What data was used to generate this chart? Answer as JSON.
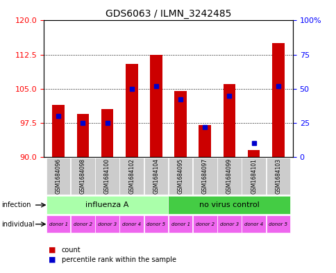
{
  "title": "GDS6063 / ILMN_3242485",
  "samples": [
    "GSM1684096",
    "GSM1684098",
    "GSM1684100",
    "GSM1684102",
    "GSM1684104",
    "GSM1684095",
    "GSM1684097",
    "GSM1684099",
    "GSM1684101",
    "GSM1684103"
  ],
  "bar_values": [
    101.5,
    99.5,
    100.5,
    110.5,
    112.5,
    104.5,
    97.0,
    106.0,
    91.5,
    115.0
  ],
  "percentile_values": [
    30,
    25,
    25,
    50,
    52,
    42,
    22,
    45,
    10,
    52
  ],
  "ylim_left": [
    90,
    120
  ],
  "ylim_right": [
    0,
    100
  ],
  "yticks_left": [
    90,
    97.5,
    105,
    112.5,
    120
  ],
  "yticks_right": [
    0,
    25,
    50,
    75,
    100
  ],
  "bar_color": "#cc0000",
  "percentile_color": "#0000cc",
  "infection_groups": [
    {
      "label": "influenza A",
      "span": [
        0,
        5
      ],
      "color": "#aaffaa"
    },
    {
      "label": "no virus control",
      "span": [
        5,
        10
      ],
      "color": "#44cc44"
    }
  ],
  "individual_labels": [
    "donor 1",
    "donor 2",
    "donor 3",
    "donor 4",
    "donor 5",
    "donor 1",
    "donor 2",
    "donor 3",
    "donor 4",
    "donor 5"
  ],
  "individual_color": "#ee66ee",
  "sample_bg_color": "#cccccc",
  "legend_count_color": "#cc0000",
  "legend_percentile_color": "#0000cc"
}
